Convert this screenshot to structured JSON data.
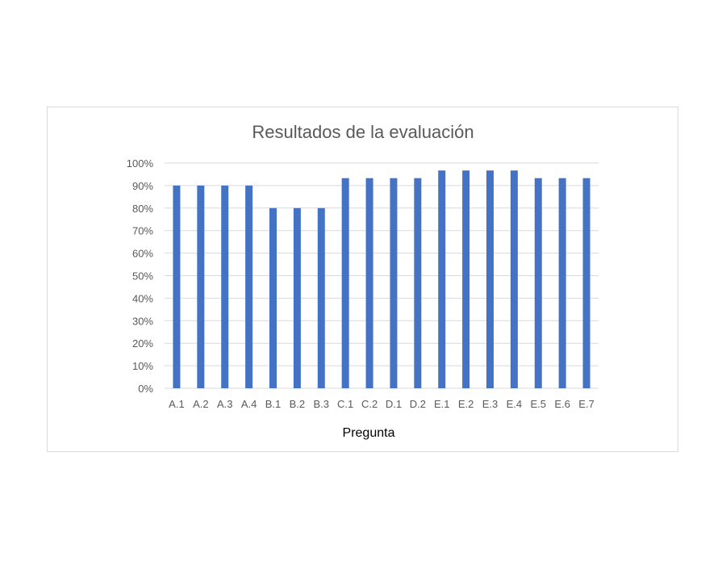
{
  "chart_data": {
    "type": "bar",
    "title": "Resultados de la evaluación",
    "xlabel": "Pregunta",
    "ylabel": "",
    "categories": [
      "A.1",
      "A.2",
      "A.3",
      "A.4",
      "B.1",
      "B.2",
      "B.3",
      "C.1",
      "C.2",
      "D.1",
      "D.2",
      "E.1",
      "E.2",
      "E.3",
      "E.4",
      "E.5",
      "E.6",
      "E.7"
    ],
    "values": [
      90,
      90,
      90,
      90,
      80,
      80,
      80,
      93.3,
      93.3,
      93.3,
      93.3,
      96.7,
      96.7,
      96.7,
      96.7,
      93.3,
      93.3,
      93.3
    ],
    "ylim": [
      0,
      100
    ],
    "yticks": [
      "0%",
      "10%",
      "20%",
      "30%",
      "40%",
      "50%",
      "60%",
      "70%",
      "80%",
      "90%",
      "100%"
    ],
    "grid": true,
    "legend": "none",
    "colors": {
      "bar": "#4472c4",
      "grid": "#d9d9d9",
      "text": "#595959"
    }
  }
}
